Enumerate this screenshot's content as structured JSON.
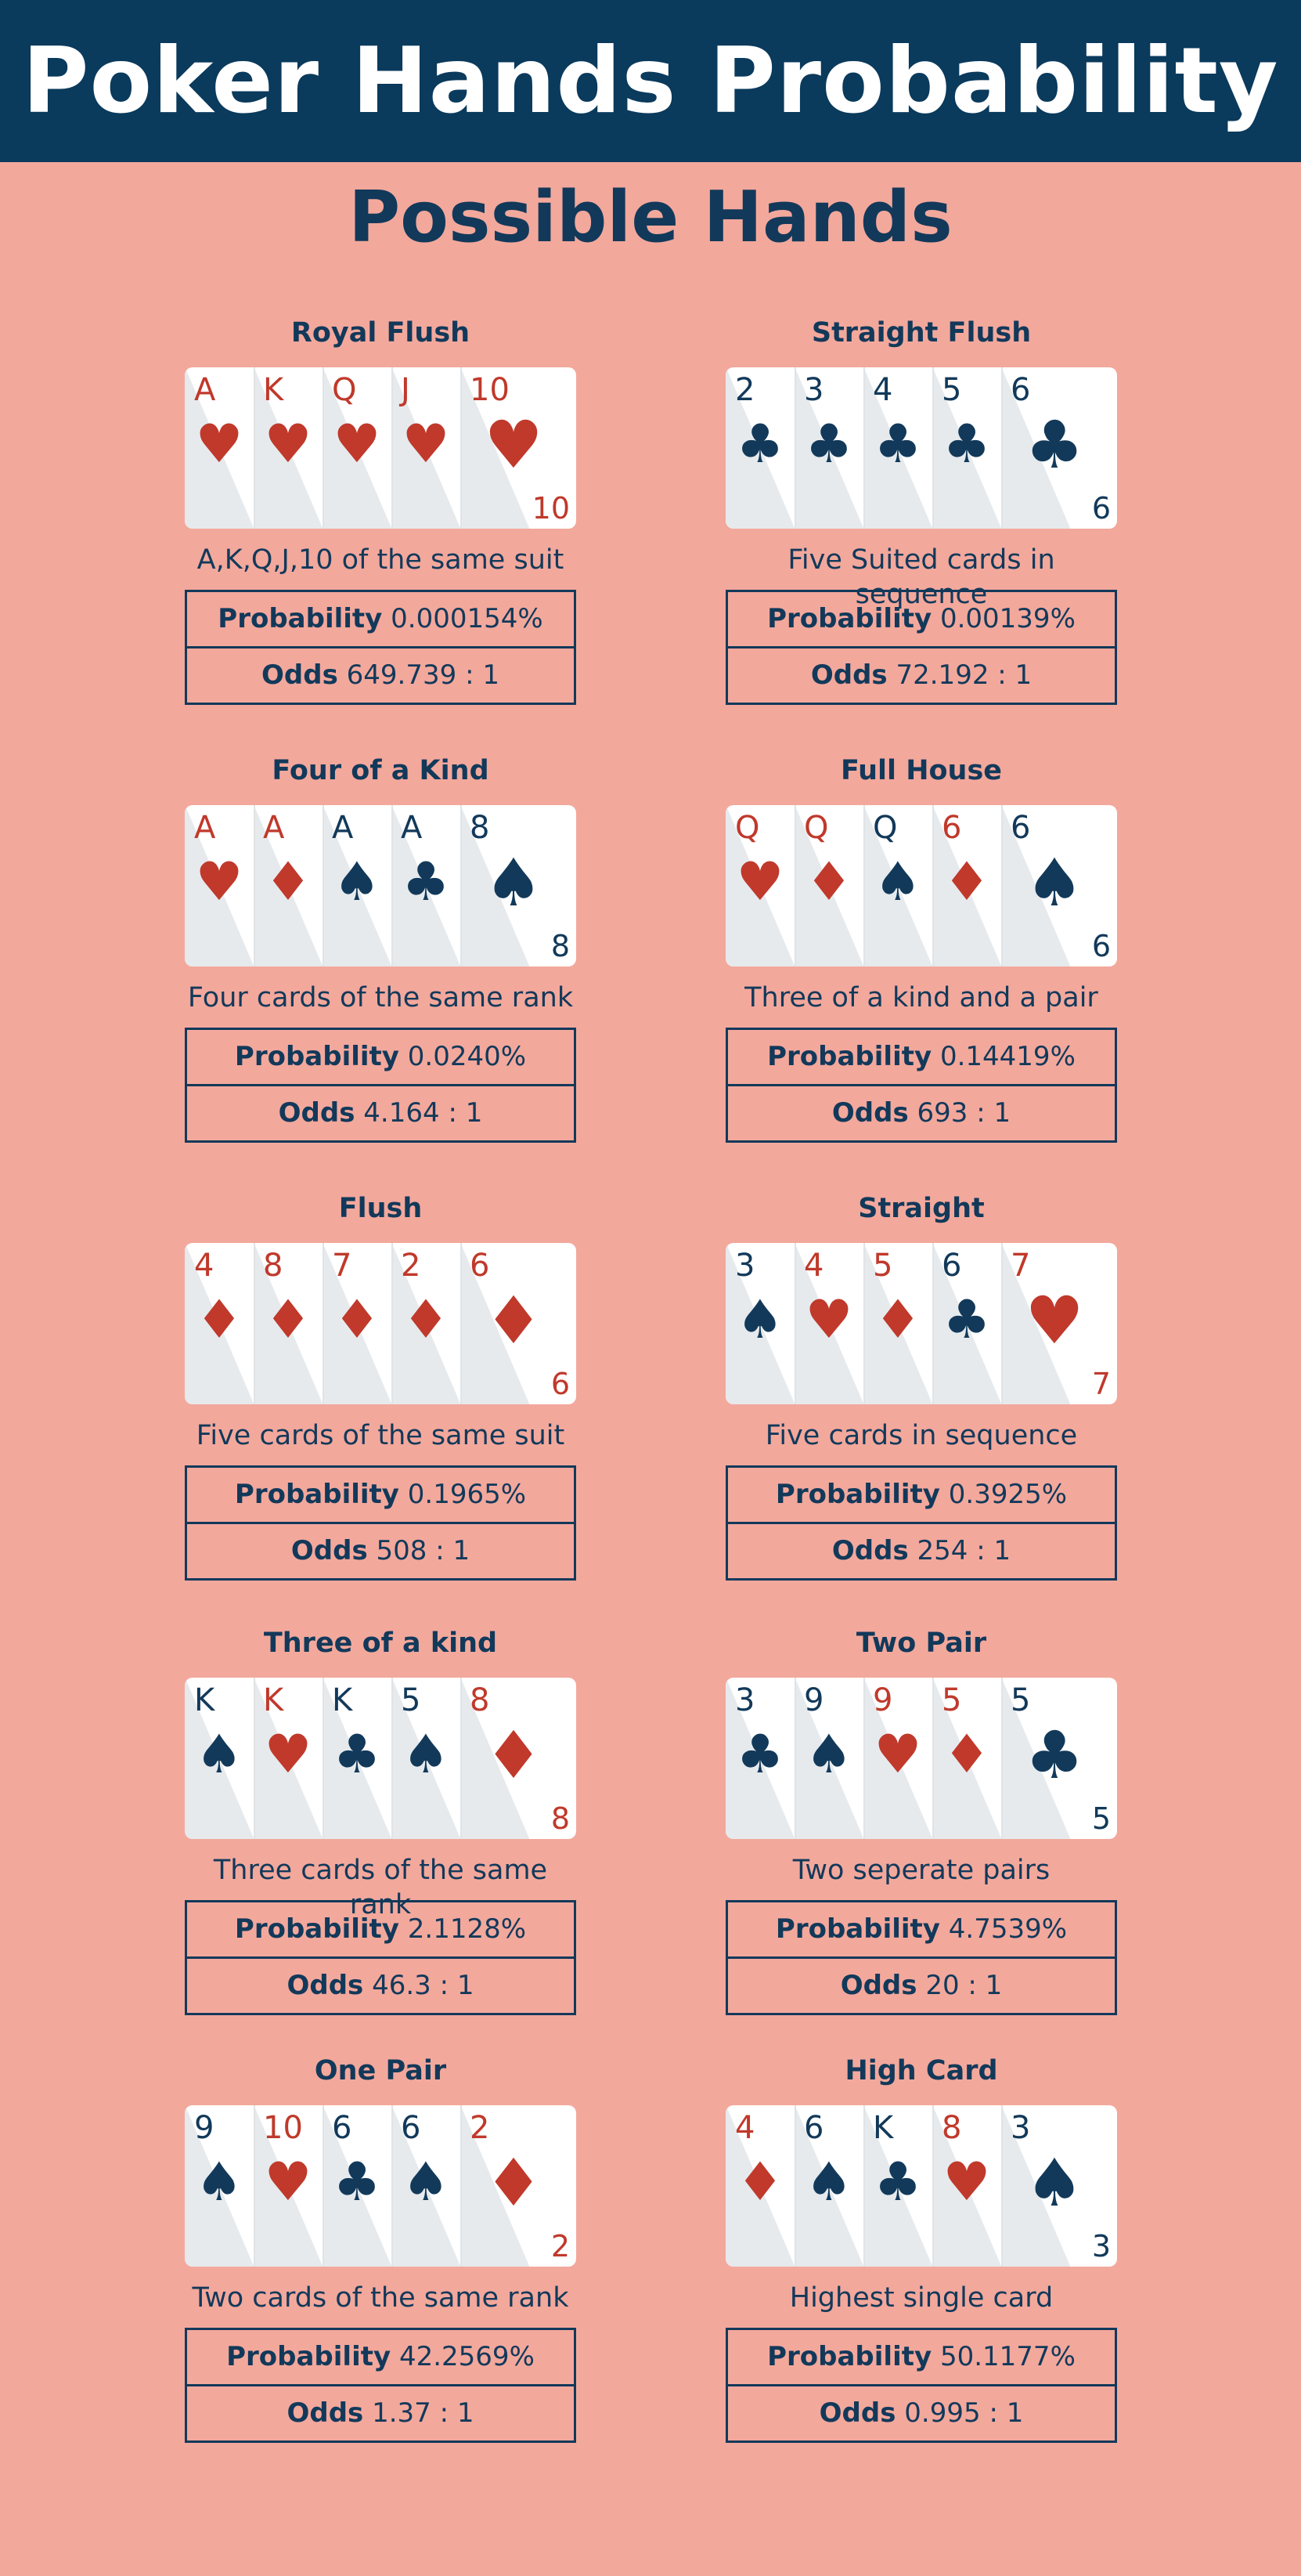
{
  "title": "Poker Hands Probability",
  "subtitle": "Possible Hands",
  "labels": {
    "probability": "Probability",
    "odds": "Odds"
  },
  "colors": {
    "red": "#c0392b",
    "navy": "#12395a",
    "background": "#f3a89c",
    "header": "#0a3a5c"
  },
  "hands": [
    {
      "name": "Royal Flush",
      "description": "A,K,Q,J,10 of the same suit",
      "probability": "0.000154%",
      "odds": "649.739 : 1",
      "cards": [
        {
          "rank": "A",
          "suit": "heart"
        },
        {
          "rank": "K",
          "suit": "heart"
        },
        {
          "rank": "Q",
          "suit": "heart"
        },
        {
          "rank": "J",
          "suit": "heart"
        },
        {
          "rank": "10",
          "suit": "heart"
        }
      ]
    },
    {
      "name": "Straight Flush",
      "description": "Five Suited cards in sequence",
      "probability": "0.00139%",
      "odds": "72.192 : 1",
      "cards": [
        {
          "rank": "2",
          "suit": "club"
        },
        {
          "rank": "3",
          "suit": "club"
        },
        {
          "rank": "4",
          "suit": "club"
        },
        {
          "rank": "5",
          "suit": "club"
        },
        {
          "rank": "6",
          "suit": "club"
        }
      ]
    },
    {
      "name": "Four of a Kind",
      "description": "Four cards of the same rank",
      "probability": "0.0240%",
      "odds": "4.164 : 1",
      "cards": [
        {
          "rank": "A",
          "suit": "heart"
        },
        {
          "rank": "A",
          "suit": "diamond"
        },
        {
          "rank": "A",
          "suit": "spade"
        },
        {
          "rank": "A",
          "suit": "club"
        },
        {
          "rank": "8",
          "suit": "spade"
        }
      ]
    },
    {
      "name": "Full House",
      "description": "Three of a kind and a pair",
      "probability": "0.14419%",
      "odds": "693 : 1",
      "cards": [
        {
          "rank": "Q",
          "suit": "heart"
        },
        {
          "rank": "Q",
          "suit": "diamond"
        },
        {
          "rank": "Q",
          "suit": "spade"
        },
        {
          "rank": "6",
          "suit": "diamond"
        },
        {
          "rank": "6",
          "suit": "spade"
        }
      ]
    },
    {
      "name": "Flush",
      "description": "Five cards of the same suit",
      "probability": "0.1965%",
      "odds": "508 : 1",
      "cards": [
        {
          "rank": "4",
          "suit": "diamond"
        },
        {
          "rank": "8",
          "suit": "diamond"
        },
        {
          "rank": "7",
          "suit": "diamond"
        },
        {
          "rank": "2",
          "suit": "diamond"
        },
        {
          "rank": "6",
          "suit": "diamond"
        }
      ]
    },
    {
      "name": "Straight",
      "description": "Five cards in sequence",
      "probability": "0.3925%",
      "odds": "254 : 1",
      "cards": [
        {
          "rank": "3",
          "suit": "spade"
        },
        {
          "rank": "4",
          "suit": "heart"
        },
        {
          "rank": "5",
          "suit": "diamond"
        },
        {
          "rank": "6",
          "suit": "club"
        },
        {
          "rank": "7",
          "suit": "heart"
        }
      ]
    },
    {
      "name": "Three of a kind",
      "description": "Three cards of the same rank",
      "probability": "2.1128%",
      "odds": "46.3 : 1",
      "cards": [
        {
          "rank": "K",
          "suit": "spade"
        },
        {
          "rank": "K",
          "suit": "heart"
        },
        {
          "rank": "K",
          "suit": "club"
        },
        {
          "rank": "5",
          "suit": "spade"
        },
        {
          "rank": "8",
          "suit": "diamond"
        }
      ]
    },
    {
      "name": "Two Pair",
      "description": "Two seperate pairs",
      "probability": "4.7539%",
      "odds": "20 : 1",
      "cards": [
        {
          "rank": "3",
          "suit": "club"
        },
        {
          "rank": "9",
          "suit": "spade"
        },
        {
          "rank": "9",
          "suit": "heart"
        },
        {
          "rank": "5",
          "suit": "diamond"
        },
        {
          "rank": "5",
          "suit": "club"
        }
      ]
    },
    {
      "name": "One Pair",
      "description": "Two cards of the same rank",
      "probability": "42.2569%",
      "odds": "1.37 : 1",
      "cards": [
        {
          "rank": "9",
          "suit": "spade"
        },
        {
          "rank": "10",
          "suit": "heart"
        },
        {
          "rank": "6",
          "suit": "club"
        },
        {
          "rank": "6",
          "suit": "spade"
        },
        {
          "rank": "2",
          "suit": "diamond"
        }
      ]
    },
    {
      "name": "High Card",
      "description": "Highest single card",
      "probability": "50.1177%",
      "odds": "0.995 : 1",
      "cards": [
        {
          "rank": "4",
          "suit": "diamond"
        },
        {
          "rank": "6",
          "suit": "spade"
        },
        {
          "rank": "K",
          "suit": "club"
        },
        {
          "rank": "8",
          "suit": "heart"
        },
        {
          "rank": "3",
          "suit": "spade"
        }
      ]
    }
  ]
}
